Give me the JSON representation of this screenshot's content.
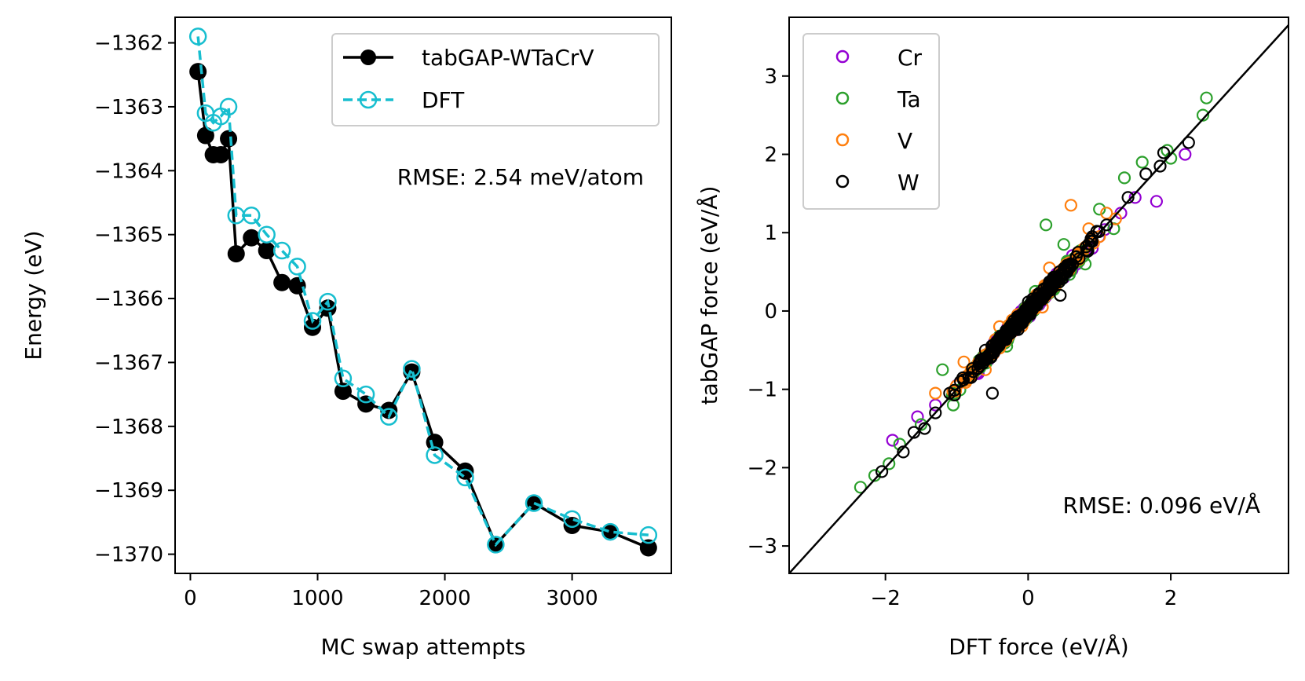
{
  "chart_data": [
    {
      "type": "line",
      "xlabel": "MC swap attempts",
      "ylabel": "Energy (eV)",
      "xlim": [
        -120,
        3780
      ],
      "ylim": [
        -1370.3,
        -1361.6
      ],
      "xticks": [
        0,
        1000,
        2000,
        3000
      ],
      "yticks": [
        -1362,
        -1363,
        -1364,
        -1365,
        -1366,
        -1367,
        -1368,
        -1369,
        -1370
      ],
      "xtick_labels": [
        "0",
        "1000",
        "2000",
        "3000"
      ],
      "ytick_labels": [
        "−1362",
        "−1363",
        "−1364",
        "−1365",
        "−1366",
        "−1367",
        "−1368",
        "−1369",
        "−1370"
      ],
      "annotation": "RMSE: 2.54 meV/atom",
      "legend_position": "top-right",
      "series": [
        {
          "name": "tabGAP-WTaCrV",
          "color": "#000000",
          "marker": "filled-circle",
          "linestyle": "solid",
          "x": [
            60,
            120,
            180,
            240,
            300,
            360,
            480,
            600,
            720,
            840,
            960,
            1080,
            1200,
            1380,
            1560,
            1740,
            1920,
            2160,
            2400,
            2700,
            3000,
            3300,
            3600
          ],
          "y": [
            -1362.45,
            -1363.45,
            -1363.75,
            -1363.75,
            -1363.5,
            -1365.3,
            -1365.05,
            -1365.25,
            -1365.75,
            -1365.8,
            -1366.45,
            -1366.15,
            -1367.45,
            -1367.65,
            -1367.75,
            -1367.15,
            -1368.25,
            -1368.7,
            -1369.85,
            -1369.2,
            -1369.55,
            -1369.65,
            -1369.9
          ]
        },
        {
          "name": "DFT",
          "color": "#17becf",
          "marker": "open-circle",
          "linestyle": "dashed",
          "x": [
            60,
            120,
            180,
            240,
            300,
            360,
            480,
            600,
            720,
            840,
            960,
            1080,
            1200,
            1380,
            1560,
            1740,
            1920,
            2160,
            2400,
            2700,
            3000,
            3300,
            3600
          ],
          "y": [
            -1361.9,
            -1363.1,
            -1363.25,
            -1363.15,
            -1363.0,
            -1364.7,
            -1364.7,
            -1365.0,
            -1365.25,
            -1365.5,
            -1366.35,
            -1366.05,
            -1367.25,
            -1367.5,
            -1367.85,
            -1367.1,
            -1368.45,
            -1368.8,
            -1369.85,
            -1369.2,
            -1369.45,
            -1369.65,
            -1369.7
          ]
        }
      ]
    },
    {
      "type": "scatter",
      "xlabel": "DFT force (eV/Å)",
      "ylabel": "tabGAP force (eV/Å)",
      "xlim": [
        -3.35,
        3.65
      ],
      "ylim": [
        -3.35,
        3.75
      ],
      "xticks": [
        -2,
        0,
        2
      ],
      "yticks": [
        -3,
        -2,
        -1,
        0,
        1,
        2,
        3
      ],
      "xtick_labels": [
        "−2",
        "0",
        "2"
      ],
      "ytick_labels": [
        "−3",
        "−2",
        "−1",
        "0",
        "1",
        "2",
        "3"
      ],
      "annotation": "RMSE: 0.096 eV/Å",
      "reference_line": "y = x",
      "legend_position": "top-left",
      "series": [
        {
          "name": "Cr",
          "color": "#9400d3",
          "x": [
            -1.55,
            -1.9,
            -1.3,
            -1.0,
            -0.7,
            0.4,
            1.8,
            2.2,
            1.5,
            1.3,
            0.9,
            -0.5
          ],
          "y": [
            -1.35,
            -1.65,
            -1.2,
            -0.95,
            -0.8,
            0.35,
            1.4,
            2.0,
            1.45,
            1.25,
            0.8,
            -0.55
          ]
        },
        {
          "name": "Ta",
          "color": "#2ca02c",
          "x": [
            -2.35,
            -2.15,
            -1.95,
            -1.8,
            -1.5,
            -1.2,
            -1.05,
            0.25,
            0.5,
            1.0,
            1.35,
            1.6,
            1.95,
            2.45,
            2.5,
            2.0,
            0.8,
            -0.3,
            0.1,
            1.2
          ],
          "y": [
            -2.25,
            -2.1,
            -1.95,
            -1.7,
            -1.45,
            -0.75,
            -1.2,
            1.1,
            0.85,
            1.3,
            1.7,
            1.9,
            2.05,
            2.5,
            2.72,
            1.95,
            0.6,
            -0.45,
            0.25,
            1.05
          ]
        },
        {
          "name": "V",
          "color": "#ff7f0e",
          "x": [
            -1.3,
            -0.6,
            -0.4,
            0.3,
            0.6,
            0.85,
            1.0,
            -0.9,
            0.2,
            1.1
          ],
          "y": [
            -1.05,
            -0.75,
            -0.2,
            0.55,
            1.35,
            1.05,
            0.95,
            -0.65,
            0.05,
            1.25
          ]
        },
        {
          "name": "W",
          "color": "#000000",
          "x": [
            -2.05,
            -1.75,
            -1.6,
            -1.3,
            -1.1,
            -0.95,
            -0.8,
            -0.6,
            -0.3,
            -0.1,
            0.0,
            0.15,
            0.35,
            0.55,
            0.7,
            0.9,
            1.1,
            1.4,
            1.65,
            1.85,
            2.25,
            -0.5,
            0.45,
            1.9,
            -1.45
          ],
          "y": [
            -2.05,
            -1.8,
            -1.55,
            -1.3,
            -1.05,
            -0.9,
            -0.85,
            -0.5,
            -0.25,
            -0.05,
            0.05,
            0.15,
            0.4,
            0.5,
            0.75,
            0.95,
            1.1,
            1.45,
            1.75,
            1.85,
            2.15,
            -1.05,
            0.2,
            2.02,
            -1.5
          ]
        }
      ],
      "cloud": {
        "points_per_series": 300,
        "spread_x": 0.55,
        "noise": 0.1
      }
    }
  ]
}
